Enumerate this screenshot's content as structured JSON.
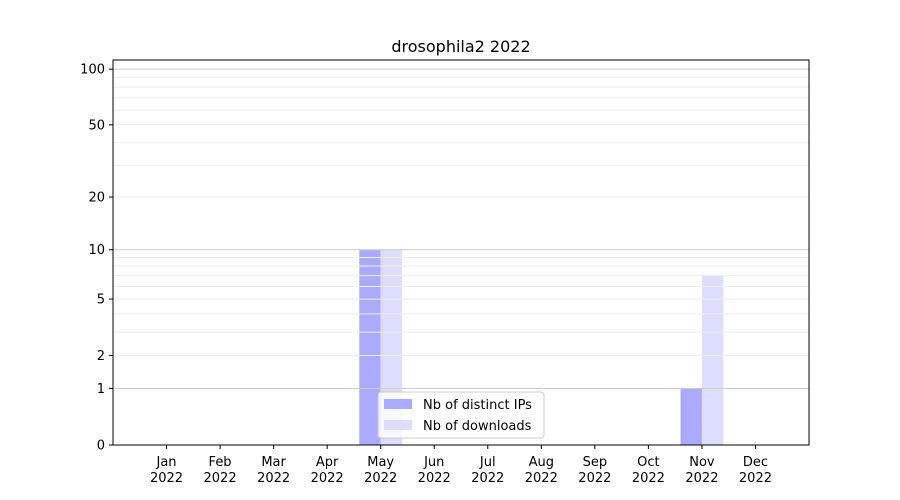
{
  "chart_data": {
    "type": "bar",
    "title": "drosophila2 2022",
    "xlabel": "",
    "ylabel": "",
    "yscale": "log(1+y)",
    "ylim": [
      0,
      112
    ],
    "categories": [
      "Jan\n2022",
      "Feb\n2022",
      "Mar\n2022",
      "Apr\n2022",
      "May\n2022",
      "Jun\n2022",
      "Jul\n2022",
      "Aug\n2022",
      "Sep\n2022",
      "Oct\n2022",
      "Nov\n2022",
      "Dec\n2022"
    ],
    "yticks": [
      0,
      1,
      2,
      5,
      10,
      20,
      50,
      100
    ],
    "ytick_labels": [
      "0",
      "1",
      "2",
      "5",
      "10",
      "20",
      "50",
      "100"
    ],
    "grid": true,
    "legend_placement": "lower center",
    "series": [
      {
        "name": "Nb of distinct IPs",
        "color": "#aaaaff",
        "values": [
          0,
          0,
          0,
          0,
          10,
          0,
          0,
          0,
          0,
          0,
          1,
          0
        ]
      },
      {
        "name": "Nb of downloads",
        "color": "#ddddff",
        "values": [
          0,
          0,
          0,
          0,
          10,
          0,
          0,
          0,
          0,
          0,
          7,
          0
        ]
      }
    ]
  }
}
